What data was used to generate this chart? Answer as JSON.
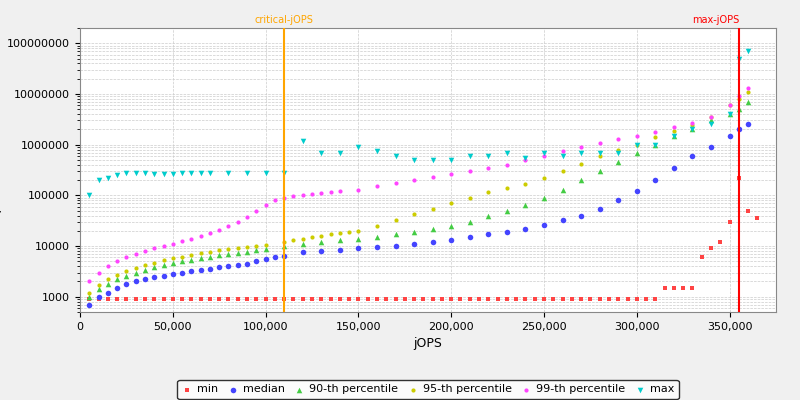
{
  "xlabel": "jOPS",
  "xlim": [
    0,
    375000
  ],
  "ylim_log": [
    500,
    200000000
  ],
  "critical_jops": 110000,
  "max_jops": 355000,
  "critical_label": "critical-jOPS",
  "max_label": "max-jOPS",
  "critical_color": "#FFA500",
  "max_color": "#FF0000",
  "background_color": "#f0f0f0",
  "plot_bg_color": "#ffffff",
  "grid_color": "#cccccc",
  "series": {
    "min": {
      "color": "#FF4444",
      "marker": "s",
      "markersize": 3,
      "label": "min",
      "x": [
        5000,
        10000,
        15000,
        20000,
        25000,
        30000,
        35000,
        40000,
        45000,
        50000,
        55000,
        60000,
        65000,
        70000,
        75000,
        80000,
        85000,
        90000,
        95000,
        100000,
        105000,
        110000,
        115000,
        120000,
        125000,
        130000,
        135000,
        140000,
        145000,
        150000,
        155000,
        160000,
        165000,
        170000,
        175000,
        180000,
        185000,
        190000,
        195000,
        200000,
        205000,
        210000,
        215000,
        220000,
        225000,
        230000,
        235000,
        240000,
        245000,
        250000,
        255000,
        260000,
        265000,
        270000,
        275000,
        280000,
        285000,
        290000,
        295000,
        300000,
        305000,
        310000,
        315000,
        320000,
        325000,
        330000,
        335000,
        340000,
        345000,
        350000,
        355000,
        360000,
        365000
      ],
      "y": [
        900,
        900,
        900,
        900,
        900,
        900,
        900,
        900,
        900,
        900,
        900,
        900,
        900,
        900,
        900,
        900,
        900,
        900,
        900,
        900,
        900,
        900,
        900,
        900,
        900,
        900,
        900,
        900,
        900,
        900,
        900,
        900,
        900,
        900,
        900,
        900,
        900,
        900,
        900,
        900,
        900,
        900,
        900,
        900,
        900,
        900,
        900,
        900,
        900,
        900,
        900,
        900,
        900,
        900,
        900,
        900,
        900,
        900,
        900,
        900,
        900,
        900,
        1500,
        1500,
        1500,
        1500,
        6000,
        9000,
        12000,
        30000,
        220000,
        50000,
        35000
      ]
    },
    "median": {
      "color": "#4444FF",
      "marker": "o",
      "markersize": 4,
      "label": "median",
      "x": [
        5000,
        10000,
        15000,
        20000,
        25000,
        30000,
        35000,
        40000,
        45000,
        50000,
        55000,
        60000,
        65000,
        70000,
        75000,
        80000,
        85000,
        90000,
        95000,
        100000,
        105000,
        110000,
        120000,
        130000,
        140000,
        150000,
        160000,
        170000,
        180000,
        190000,
        200000,
        210000,
        220000,
        230000,
        240000,
        250000,
        260000,
        270000,
        280000,
        290000,
        300000,
        310000,
        320000,
        330000,
        340000,
        350000,
        355000,
        360000
      ],
      "y": [
        700,
        1000,
        1200,
        1500,
        1800,
        2000,
        2200,
        2400,
        2600,
        2800,
        3000,
        3200,
        3400,
        3600,
        3800,
        4000,
        4200,
        4500,
        5000,
        5500,
        6000,
        6500,
        7500,
        8000,
        8500,
        9000,
        9500,
        10000,
        11000,
        12000,
        13000,
        15000,
        17000,
        19000,
        22000,
        26000,
        32000,
        40000,
        55000,
        80000,
        120000,
        200000,
        350000,
        600000,
        900000,
        1500000,
        2000000,
        2500000
      ]
    },
    "p90": {
      "color": "#44CC44",
      "marker": "^",
      "markersize": 4,
      "label": "90-th percentile",
      "x": [
        5000,
        10000,
        15000,
        20000,
        25000,
        30000,
        35000,
        40000,
        45000,
        50000,
        55000,
        60000,
        65000,
        70000,
        75000,
        80000,
        85000,
        90000,
        95000,
        100000,
        110000,
        120000,
        130000,
        140000,
        150000,
        160000,
        170000,
        180000,
        190000,
        200000,
        210000,
        220000,
        230000,
        240000,
        250000,
        260000,
        270000,
        280000,
        290000,
        300000,
        310000,
        320000,
        330000,
        340000,
        350000,
        355000,
        360000
      ],
      "y": [
        1000,
        1400,
        1800,
        2200,
        2600,
        3000,
        3400,
        3800,
        4200,
        4600,
        5000,
        5400,
        5800,
        6200,
        6600,
        7000,
        7400,
        7800,
        8200,
        8600,
        10000,
        11000,
        12000,
        13000,
        14000,
        15000,
        17000,
        19000,
        22000,
        25000,
        30000,
        40000,
        50000,
        65000,
        90000,
        130000,
        200000,
        300000,
        450000,
        700000,
        1000000,
        1500000,
        2000000,
        3000000,
        4000000,
        5000000,
        7000000
      ]
    },
    "p95": {
      "color": "#CCCC00",
      "marker": "o",
      "markersize": 3,
      "label": "95-th percentile",
      "x": [
        5000,
        10000,
        15000,
        20000,
        25000,
        30000,
        35000,
        40000,
        45000,
        50000,
        55000,
        60000,
        65000,
        70000,
        75000,
        80000,
        85000,
        90000,
        95000,
        100000,
        110000,
        115000,
        120000,
        125000,
        130000,
        135000,
        140000,
        145000,
        150000,
        160000,
        170000,
        180000,
        190000,
        200000,
        210000,
        220000,
        230000,
        240000,
        250000,
        260000,
        270000,
        280000,
        290000,
        300000,
        310000,
        320000,
        330000,
        340000,
        350000,
        355000,
        360000
      ],
      "y": [
        1200,
        1700,
        2200,
        2700,
        3200,
        3700,
        4200,
        4700,
        5200,
        5700,
        6200,
        6700,
        7200,
        7700,
        8200,
        8700,
        9200,
        9700,
        10200,
        10700,
        12000,
        13000,
        14000,
        15000,
        16000,
        17000,
        18000,
        19000,
        20000,
        25000,
        32000,
        42000,
        55000,
        70000,
        90000,
        115000,
        140000,
        170000,
        220000,
        300000,
        420000,
        600000,
        800000,
        1000000,
        1400000,
        1900000,
        2400000,
        3500000,
        6000000,
        8000000,
        11000000
      ]
    },
    "p99": {
      "color": "#FF44FF",
      "marker": "o",
      "markersize": 3,
      "label": "99-th percentile",
      "x": [
        5000,
        10000,
        15000,
        20000,
        25000,
        30000,
        35000,
        40000,
        45000,
        50000,
        55000,
        60000,
        65000,
        70000,
        75000,
        80000,
        85000,
        90000,
        95000,
        100000,
        105000,
        110000,
        115000,
        120000,
        125000,
        130000,
        135000,
        140000,
        150000,
        160000,
        170000,
        180000,
        190000,
        200000,
        210000,
        220000,
        230000,
        240000,
        250000,
        260000,
        270000,
        280000,
        290000,
        300000,
        310000,
        320000,
        330000,
        340000,
        350000,
        355000,
        360000
      ],
      "y": [
        2000,
        3000,
        4000,
        5000,
        6000,
        7000,
        8000,
        9000,
        10000,
        11000,
        12500,
        14000,
        16000,
        18000,
        21000,
        25000,
        30000,
        38000,
        50000,
        65000,
        80000,
        90000,
        95000,
        100000,
        105000,
        110000,
        115000,
        120000,
        130000,
        150000,
        175000,
        200000,
        230000,
        260000,
        300000,
        350000,
        400000,
        500000,
        600000,
        750000,
        900000,
        1100000,
        1300000,
        1500000,
        1800000,
        2200000,
        2700000,
        3500000,
        6000000,
        9000000,
        13000000
      ]
    },
    "max": {
      "color": "#00CCCC",
      "marker": "v",
      "markersize": 4,
      "label": "max",
      "x": [
        5000,
        10000,
        15000,
        20000,
        25000,
        30000,
        35000,
        40000,
        45000,
        50000,
        55000,
        60000,
        65000,
        70000,
        80000,
        90000,
        100000,
        110000,
        120000,
        130000,
        140000,
        150000,
        160000,
        170000,
        180000,
        190000,
        200000,
        210000,
        220000,
        230000,
        240000,
        250000,
        260000,
        270000,
        280000,
        290000,
        300000,
        310000,
        320000,
        330000,
        340000,
        350000,
        355000,
        360000
      ],
      "y": [
        100000,
        200000,
        220000,
        250000,
        270000,
        280000,
        270000,
        260000,
        260000,
        260000,
        270000,
        270000,
        270000,
        270000,
        270000,
        270000,
        270000,
        270000,
        1200000,
        700000,
        700000,
        900000,
        750000,
        600000,
        500000,
        500000,
        500000,
        600000,
        600000,
        700000,
        550000,
        700000,
        600000,
        700000,
        700000,
        700000,
        1000000,
        1000000,
        1500000,
        2000000,
        2500000,
        4000000,
        50000000,
        70000000
      ]
    }
  },
  "xticks": [
    0,
    50000,
    100000,
    150000,
    200000,
    250000,
    300000,
    350000
  ],
  "xtick_labels": [
    "0",
    "50,000",
    "100,000",
    "150,000",
    "200,000",
    "250,000",
    "300,000",
    "350,000"
  ],
  "yticks_log": [
    1000,
    10000,
    100000,
    1000000,
    10000000,
    100000000
  ],
  "ytick_labels": [
    "1000",
    "10000",
    "100000",
    "1000000",
    "10000000",
    "100000000"
  ],
  "fontsize_ticks": 8,
  "fontsize_labels": 9
}
